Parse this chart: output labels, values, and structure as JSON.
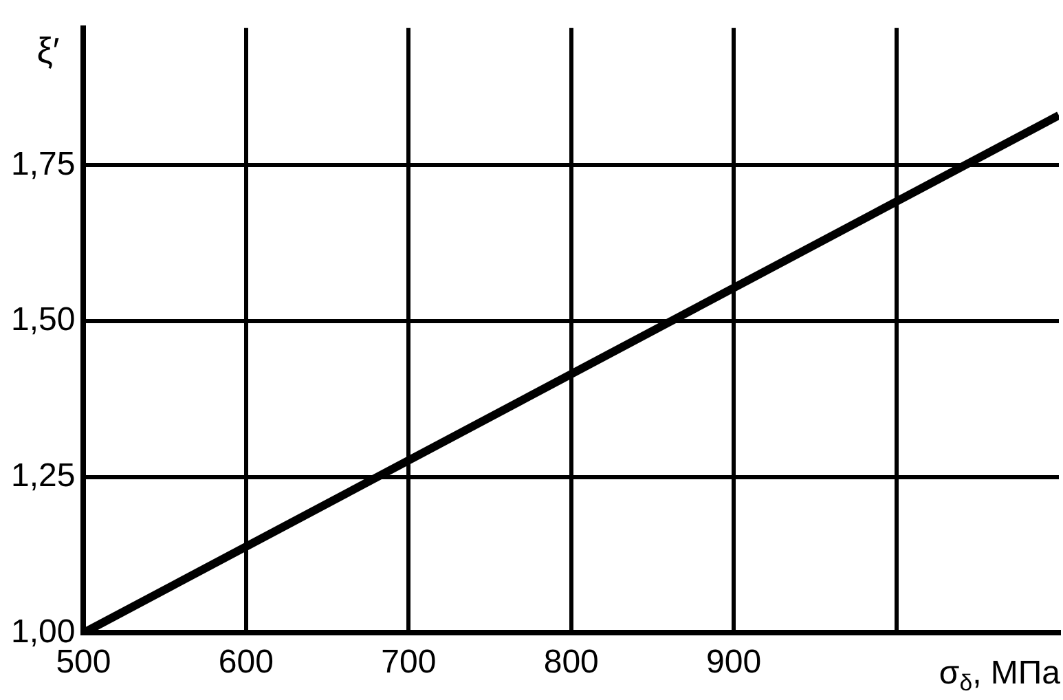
{
  "chart_data": {
    "type": "line",
    "xlabel": "σ$_{δ}$, МПа",
    "ylabel": "ξ′",
    "xlim": [
      500,
      1100
    ],
    "ylim": [
      1,
      1.97
    ],
    "xticks": [
      500,
      600,
      700,
      800,
      900,
      {
        "value": 1000,
        "label": null
      }
    ],
    "yticks": [
      {
        "value": 1,
        "label": "1,00"
      },
      {
        "value": 1.25,
        "label": "1,25"
      },
      {
        "value": 1.5,
        "label": "1,50"
      },
      {
        "value": 1.75,
        "label": "1,75"
      }
    ],
    "grid": true,
    "series": [
      {
        "color": "#000000",
        "x": [
          500,
          1100
        ],
        "values": [
          1.0,
          1.83
        ]
      }
    ]
  }
}
